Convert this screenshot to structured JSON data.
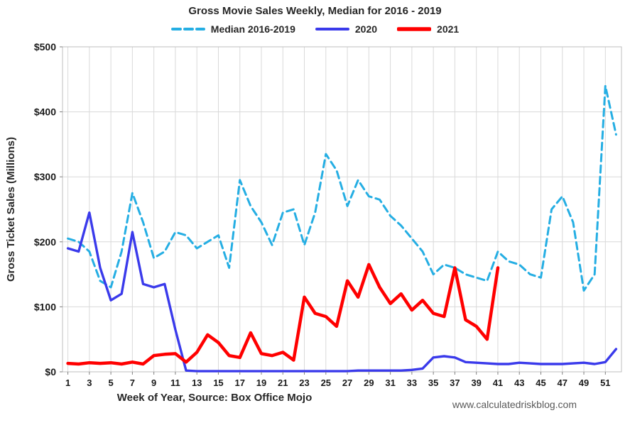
{
  "page": {
    "watermark": "www.calculatedriskblog.com"
  },
  "legend": {
    "items": [
      {
        "label": "Median 2016-2019",
        "color": "#25AEE3",
        "line_style": "dashed"
      },
      {
        "label": "2020",
        "color": "#3A3AEB",
        "line_style": "solid"
      },
      {
        "label": "2021",
        "color": "#FF0000",
        "line_style": "solid"
      }
    ]
  },
  "chart_data": {
    "type": "line",
    "title": "Gross Movie Sales Weekly, Median for 2016 - 2019",
    "xlabel": "Week of Year, Source: Box Office Mojo",
    "ylabel": "Gross Ticket Sales (Millions)",
    "xlim": [
      1,
      52
    ],
    "ylim": [
      0,
      500
    ],
    "grid": true,
    "legend_position": "top",
    "x_ticks": [
      1,
      3,
      5,
      7,
      9,
      11,
      13,
      15,
      17,
      19,
      21,
      23,
      25,
      27,
      29,
      31,
      33,
      35,
      37,
      39,
      41,
      43,
      45,
      47,
      49,
      51
    ],
    "y_ticks": [
      0,
      100,
      200,
      300,
      400,
      500
    ],
    "y_tick_labels": [
      "$0",
      "$100",
      "$200",
      "$300",
      "$400",
      "$500"
    ],
    "x_unit": "week of year",
    "y_unit": "millions USD",
    "series": [
      {
        "name": "Median 2016-2019",
        "color": "#25AEE3",
        "dashed": true,
        "line_width": 3,
        "x_start": 1,
        "values": [
          205,
          200,
          185,
          140,
          130,
          185,
          275,
          230,
          175,
          185,
          215,
          210,
          190,
          200,
          210,
          160,
          295,
          255,
          230,
          195,
          245,
          250,
          195,
          245,
          335,
          310,
          255,
          295,
          270,
          265,
          240,
          225,
          205,
          185,
          150,
          165,
          160,
          150,
          145,
          140,
          185,
          170,
          165,
          150,
          145,
          250,
          270,
          230,
          125,
          150,
          440,
          365
        ]
      },
      {
        "name": "2020",
        "color": "#3A3AEB",
        "dashed": false,
        "line_width": 3.4,
        "x_start": 1,
        "values": [
          190,
          185,
          245,
          160,
          110,
          120,
          215,
          135,
          130,
          135,
          65,
          2,
          1,
          1,
          1,
          1,
          1,
          1,
          1,
          1,
          1,
          1,
          1,
          1,
          1,
          1,
          1,
          2,
          2,
          2,
          2,
          2,
          3,
          5,
          22,
          24,
          22,
          15,
          14,
          13,
          12,
          12,
          14,
          13,
          12,
          12,
          12,
          13,
          14,
          12,
          15,
          35
        ]
      },
      {
        "name": "2021",
        "color": "#FF0000",
        "dashed": false,
        "line_width": 4.5,
        "x_start": 1,
        "values": [
          13,
          12,
          14,
          13,
          14,
          12,
          15,
          12,
          25,
          27,
          28,
          15,
          30,
          57,
          45,
          25,
          22,
          60,
          28,
          25,
          30,
          18,
          115,
          90,
          85,
          70,
          140,
          115,
          165,
          130,
          105,
          120,
          95,
          110,
          90,
          85,
          160,
          80,
          70,
          50,
          160
        ]
      }
    ]
  }
}
